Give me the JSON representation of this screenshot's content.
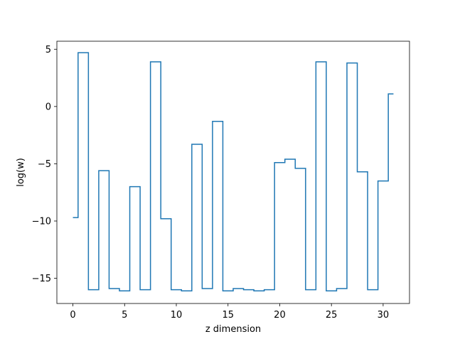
{
  "chart_data": {
    "type": "line",
    "drawstyle": "steps-mid",
    "title": "",
    "xlabel": "z dimension",
    "ylabel": "log(w)",
    "xlim": [
      -1.55,
      32.55
    ],
    "ylim": [
      -17.2,
      5.7
    ],
    "xticks": [
      0,
      5,
      10,
      15,
      20,
      25,
      30
    ],
    "yticks": [
      5,
      0,
      -5,
      -10,
      -15
    ],
    "ytick_labels": [
      "5",
      "0",
      "−5",
      "−10",
      "−15"
    ],
    "grid": false,
    "line_color": "#1f77b4",
    "x": [
      0,
      1,
      2,
      3,
      4,
      5,
      6,
      7,
      8,
      9,
      10,
      11,
      12,
      13,
      14,
      15,
      16,
      17,
      18,
      19,
      20,
      21,
      22,
      23,
      24,
      25,
      26,
      27,
      28,
      29,
      30,
      31
    ],
    "y": [
      -9.7,
      4.7,
      -16.0,
      -5.6,
      -15.9,
      -16.1,
      -7.0,
      -16.0,
      3.9,
      -9.8,
      -16.0,
      -16.1,
      -3.3,
      -15.9,
      -1.3,
      -16.1,
      -15.9,
      -16.0,
      -16.1,
      -16.0,
      -4.9,
      -4.6,
      -5.4,
      -16.0,
      3.9,
      -16.1,
      -15.9,
      3.8,
      -5.7,
      -16.0,
      -6.5,
      1.1
    ]
  }
}
